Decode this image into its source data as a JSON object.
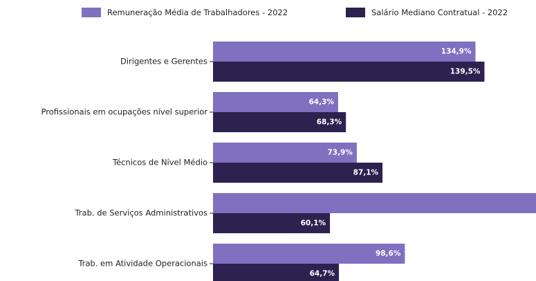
{
  "chart_data": {
    "type": "barh",
    "categories": [
      "Dirigentes e Gerentes",
      "Profissionais em ocupações nível superior",
      "Técnicos de Nível Médio",
      "Trab. de Serviços Administrativos",
      "Trab. em Atividade Operacionais"
    ],
    "series": [
      {
        "name": "Remuneração Média de Trabalhadores - 2022",
        "color": "#8070c0",
        "values": [
          134.9,
          64.3,
          73.9,
          170,
          98.6
        ],
        "value_labels": [
          "134,9%",
          "64,3%",
          "73,9%",
          null,
          "98,6%"
        ]
      },
      {
        "name": "Salário Mediano Contratual - 2022",
        "color": "#2d2150",
        "values": [
          139.5,
          68.3,
          87.1,
          60.1,
          64.7
        ],
        "value_labels": [
          "139,5%",
          "68,3%",
          "87,1%",
          "60,1%",
          "64,7%"
        ]
      }
    ],
    "xlim": [
      0,
      166
    ],
    "legend": "top"
  }
}
